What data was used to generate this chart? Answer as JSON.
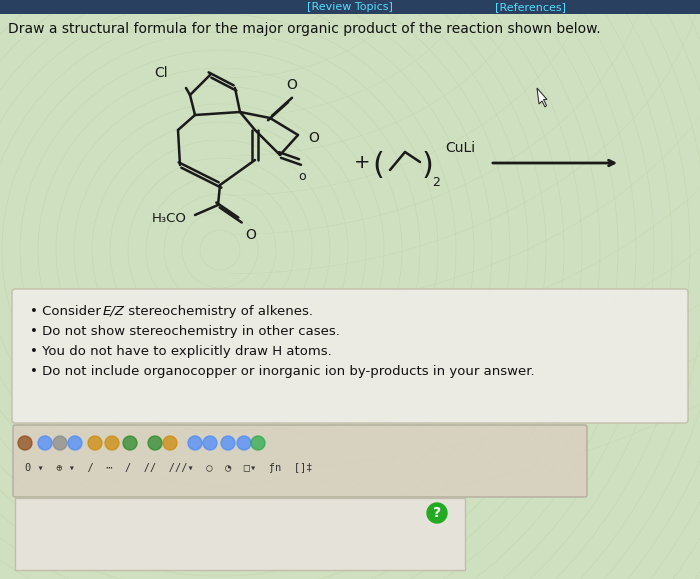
{
  "bg_color": "#cfe0c0",
  "bg_stripe_color": "#b8d0a8",
  "header_bar_color": "#3a5a7a",
  "header_links": [
    "[Review Topics]",
    "[References]"
  ],
  "header_link_color": "#00ccff",
  "title_text": "Draw a structural formula for the major organic product of the reaction shown below.",
  "bullet_points": [
    "Consider E/Z stereochemistry of alkenes.",
    "Do not show stereochemistry in other cases.",
    "You do not have to explicitly draw H atoms.",
    "Do not include organocopper or inorganic ion by-products in your answer."
  ],
  "bullet_box_bg": "#f0ede8",
  "bullet_box_edge": "#c0b8a8",
  "toolbar_bg": "#d8d0c0",
  "toolbar_edge": "#b0a898",
  "answer_box_bg": "#e8e4dc",
  "answer_box_edge": "#c0b8a8",
  "qmark_color": "#22aa22",
  "text_color": "#111111",
  "bond_color": "#1a1a1a",
  "figsize": [
    7.0,
    5.79
  ],
  "dpi": 100
}
